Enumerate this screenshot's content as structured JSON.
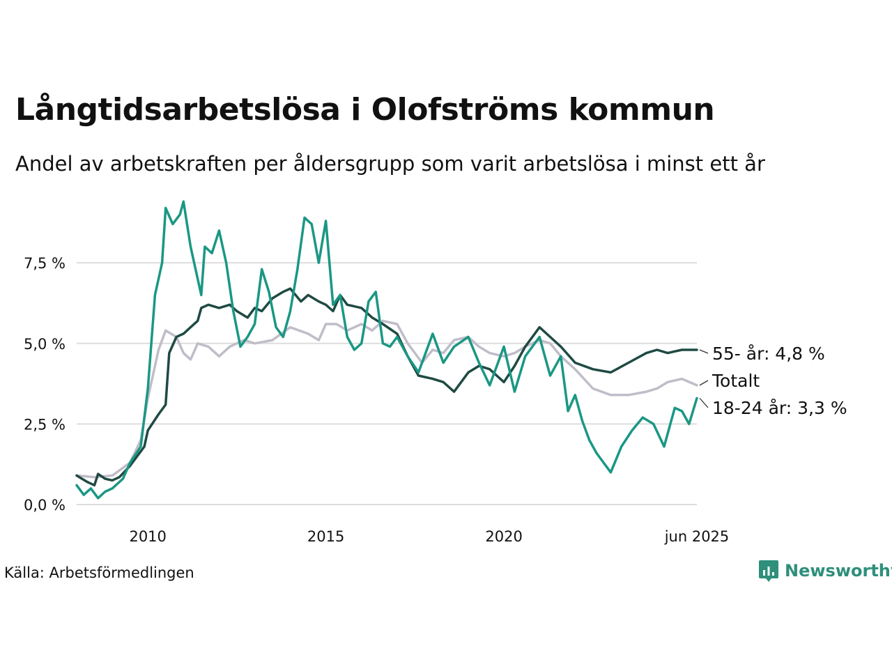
{
  "title": "Långtidsarbetslösa i Olofströms kommun",
  "subtitle": "Andel av arbetskraften per åldersgrupp som varit arbetslösa i minst ett år",
  "source": "Källa: Arbetsförmedlingen",
  "brand": "Newsworthy",
  "colors": {
    "young": "#1a9784",
    "old": "#1f4a43",
    "total": "#c0bdc9",
    "grid": "#dddddd"
  },
  "chart_data": {
    "type": "line",
    "xlim": [
      2008.0,
      2025.42
    ],
    "ylim": [
      0,
      9.6
    ],
    "y_ticks": [
      0,
      2.5,
      5.0,
      7.5
    ],
    "y_tick_labels": [
      "0,0 %",
      "2,5 %",
      "5,0 %",
      "7,5 %"
    ],
    "x_ticks": [
      2010,
      2015,
      2020,
      2025.42
    ],
    "x_tick_labels": [
      "2010",
      "2015",
      "2020",
      "jun 2025"
    ],
    "grid": "horizontal",
    "series": [
      {
        "key": "total",
        "name": "Totalt",
        "label": "Totalt",
        "points": [
          [
            2008.0,
            0.9
          ],
          [
            2008.5,
            0.85
          ],
          [
            2009.0,
            0.9
          ],
          [
            2009.5,
            1.3
          ],
          [
            2009.8,
            2.0
          ],
          [
            2010.0,
            3.3
          ],
          [
            2010.3,
            4.8
          ],
          [
            2010.5,
            5.4
          ],
          [
            2010.8,
            5.2
          ],
          [
            2011.0,
            4.7
          ],
          [
            2011.2,
            4.5
          ],
          [
            2011.4,
            5.0
          ],
          [
            2011.7,
            4.9
          ],
          [
            2012.0,
            4.6
          ],
          [
            2012.3,
            4.9
          ],
          [
            2012.7,
            5.1
          ],
          [
            2013.0,
            5.0
          ],
          [
            2013.5,
            5.1
          ],
          [
            2014.0,
            5.5
          ],
          [
            2014.5,
            5.3
          ],
          [
            2014.8,
            5.1
          ],
          [
            2015.0,
            5.6
          ],
          [
            2015.3,
            5.6
          ],
          [
            2015.6,
            5.4
          ],
          [
            2016.0,
            5.6
          ],
          [
            2016.3,
            5.4
          ],
          [
            2016.6,
            5.7
          ],
          [
            2017.0,
            5.6
          ],
          [
            2017.3,
            5.0
          ],
          [
            2017.7,
            4.4
          ],
          [
            2018.0,
            4.8
          ],
          [
            2018.3,
            4.7
          ],
          [
            2018.6,
            5.1
          ],
          [
            2019.0,
            5.2
          ],
          [
            2019.3,
            4.9
          ],
          [
            2019.6,
            4.7
          ],
          [
            2020.0,
            4.6
          ],
          [
            2020.3,
            4.7
          ],
          [
            2020.6,
            4.9
          ],
          [
            2021.0,
            5.1
          ],
          [
            2021.3,
            5.0
          ],
          [
            2021.6,
            4.6
          ],
          [
            2022.0,
            4.2
          ],
          [
            2022.5,
            3.6
          ],
          [
            2023.0,
            3.4
          ],
          [
            2023.5,
            3.4
          ],
          [
            2024.0,
            3.5
          ],
          [
            2024.3,
            3.6
          ],
          [
            2024.6,
            3.8
          ],
          [
            2025.0,
            3.9
          ],
          [
            2025.42,
            3.7
          ]
        ]
      },
      {
        "key": "old",
        "name": "55- år",
        "label": "55- år: 4,8 %",
        "points": [
          [
            2008.0,
            0.9
          ],
          [
            2008.3,
            0.7
          ],
          [
            2008.5,
            0.6
          ],
          [
            2008.6,
            0.95
          ],
          [
            2008.8,
            0.8
          ],
          [
            2009.0,
            0.75
          ],
          [
            2009.2,
            0.85
          ],
          [
            2009.5,
            1.2
          ],
          [
            2009.7,
            1.5
          ],
          [
            2009.9,
            1.8
          ],
          [
            2010.0,
            2.3
          ],
          [
            2010.3,
            2.8
          ],
          [
            2010.5,
            3.1
          ],
          [
            2010.6,
            4.7
          ],
          [
            2010.8,
            5.2
          ],
          [
            2011.0,
            5.3
          ],
          [
            2011.2,
            5.5
          ],
          [
            2011.4,
            5.7
          ],
          [
            2011.5,
            6.1
          ],
          [
            2011.7,
            6.2
          ],
          [
            2012.0,
            6.1
          ],
          [
            2012.3,
            6.2
          ],
          [
            2012.5,
            6.0
          ],
          [
            2012.8,
            5.8
          ],
          [
            2013.0,
            6.1
          ],
          [
            2013.2,
            6.0
          ],
          [
            2013.5,
            6.4
          ],
          [
            2013.8,
            6.6
          ],
          [
            2014.0,
            6.7
          ],
          [
            2014.3,
            6.3
          ],
          [
            2014.5,
            6.5
          ],
          [
            2014.8,
            6.3
          ],
          [
            2015.0,
            6.2
          ],
          [
            2015.2,
            6.0
          ],
          [
            2015.4,
            6.5
          ],
          [
            2015.6,
            6.2
          ],
          [
            2016.0,
            6.1
          ],
          [
            2016.3,
            5.8
          ],
          [
            2016.6,
            5.6
          ],
          [
            2017.0,
            5.3
          ],
          [
            2017.3,
            4.6
          ],
          [
            2017.6,
            4.0
          ],
          [
            2018.0,
            3.9
          ],
          [
            2018.3,
            3.8
          ],
          [
            2018.6,
            3.5
          ],
          [
            2019.0,
            4.1
          ],
          [
            2019.3,
            4.3
          ],
          [
            2019.6,
            4.2
          ],
          [
            2020.0,
            3.8
          ],
          [
            2020.3,
            4.3
          ],
          [
            2020.6,
            4.9
          ],
          [
            2021.0,
            5.5
          ],
          [
            2021.3,
            5.2
          ],
          [
            2021.6,
            4.9
          ],
          [
            2022.0,
            4.4
          ],
          [
            2022.5,
            4.2
          ],
          [
            2023.0,
            4.1
          ],
          [
            2023.5,
            4.4
          ],
          [
            2024.0,
            4.7
          ],
          [
            2024.3,
            4.8
          ],
          [
            2024.6,
            4.7
          ],
          [
            2025.0,
            4.8
          ],
          [
            2025.42,
            4.8
          ]
        ]
      },
      {
        "key": "young",
        "name": "18-24 år",
        "label": "18-24 år: 3,3 %",
        "points": [
          [
            2008.0,
            0.6
          ],
          [
            2008.2,
            0.3
          ],
          [
            2008.4,
            0.5
          ],
          [
            2008.6,
            0.2
          ],
          [
            2008.8,
            0.4
          ],
          [
            2009.0,
            0.5
          ],
          [
            2009.3,
            0.8
          ],
          [
            2009.5,
            1.3
          ],
          [
            2009.8,
            1.8
          ],
          [
            2010.0,
            3.6
          ],
          [
            2010.2,
            6.5
          ],
          [
            2010.4,
            7.5
          ],
          [
            2010.5,
            9.2
          ],
          [
            2010.7,
            8.7
          ],
          [
            2010.9,
            9.0
          ],
          [
            2011.0,
            9.4
          ],
          [
            2011.2,
            8.0
          ],
          [
            2011.4,
            7.0
          ],
          [
            2011.5,
            6.5
          ],
          [
            2011.6,
            8.0
          ],
          [
            2011.8,
            7.8
          ],
          [
            2012.0,
            8.5
          ],
          [
            2012.2,
            7.5
          ],
          [
            2012.4,
            6.0
          ],
          [
            2012.6,
            4.9
          ],
          [
            2012.8,
            5.2
          ],
          [
            2013.0,
            5.6
          ],
          [
            2013.2,
            7.3
          ],
          [
            2013.4,
            6.6
          ],
          [
            2013.6,
            5.5
          ],
          [
            2013.8,
            5.2
          ],
          [
            2014.0,
            6.0
          ],
          [
            2014.2,
            7.3
          ],
          [
            2014.4,
            8.9
          ],
          [
            2014.6,
            8.7
          ],
          [
            2014.8,
            7.5
          ],
          [
            2015.0,
            8.8
          ],
          [
            2015.2,
            6.2
          ],
          [
            2015.4,
            6.5
          ],
          [
            2015.6,
            5.2
          ],
          [
            2015.8,
            4.8
          ],
          [
            2016.0,
            5.0
          ],
          [
            2016.2,
            6.3
          ],
          [
            2016.4,
            6.6
          ],
          [
            2016.6,
            5.0
          ],
          [
            2016.8,
            4.9
          ],
          [
            2017.0,
            5.2
          ],
          [
            2017.3,
            4.6
          ],
          [
            2017.6,
            4.1
          ],
          [
            2018.0,
            5.3
          ],
          [
            2018.3,
            4.4
          ],
          [
            2018.6,
            4.9
          ],
          [
            2019.0,
            5.2
          ],
          [
            2019.3,
            4.4
          ],
          [
            2019.6,
            3.7
          ],
          [
            2020.0,
            4.9
          ],
          [
            2020.3,
            3.5
          ],
          [
            2020.6,
            4.6
          ],
          [
            2021.0,
            5.2
          ],
          [
            2021.3,
            4.0
          ],
          [
            2021.6,
            4.6
          ],
          [
            2021.8,
            2.9
          ],
          [
            2022.0,
            3.4
          ],
          [
            2022.2,
            2.6
          ],
          [
            2022.4,
            2.0
          ],
          [
            2022.6,
            1.6
          ],
          [
            2022.8,
            1.3
          ],
          [
            2023.0,
            1.0
          ],
          [
            2023.3,
            1.8
          ],
          [
            2023.6,
            2.3
          ],
          [
            2023.9,
            2.7
          ],
          [
            2024.2,
            2.5
          ],
          [
            2024.5,
            1.8
          ],
          [
            2024.8,
            3.0
          ],
          [
            2025.0,
            2.9
          ],
          [
            2025.2,
            2.5
          ],
          [
            2025.42,
            3.3
          ]
        ]
      }
    ]
  }
}
